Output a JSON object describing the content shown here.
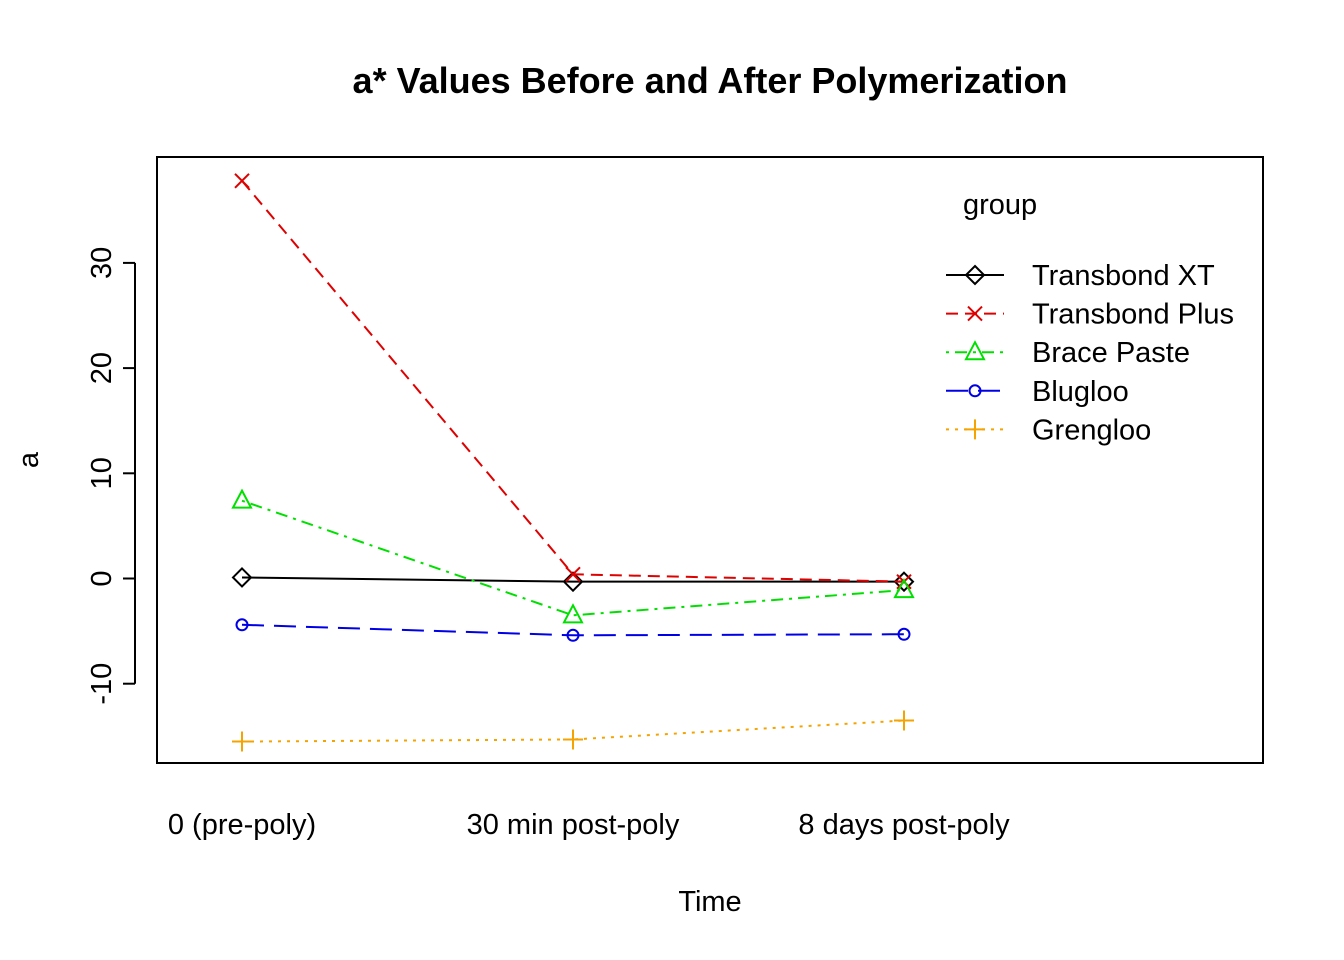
{
  "chart_data": {
    "type": "line",
    "title": "a* Values Before and After Polymerization",
    "xlabel": "Time",
    "ylabel": "a",
    "categories": [
      "0 (pre-poly)",
      "30 min post-poly",
      "8 days post-poly"
    ],
    "ylim": [
      -17.5,
      40
    ],
    "yticks": [
      -10,
      0,
      10,
      20,
      30
    ],
    "legend": {
      "title": "group",
      "position": "top-right"
    },
    "series": [
      {
        "name": "Transbond XT",
        "values": [
          0.1,
          -0.3,
          -0.3
        ],
        "color": "#000000",
        "marker": "diamond",
        "dash": "solid"
      },
      {
        "name": "Transbond Plus",
        "values": [
          37.8,
          0.4,
          -0.3
        ],
        "color": "#DF0000",
        "marker": "x",
        "dash": "dashed"
      },
      {
        "name": "Brace Paste",
        "values": [
          7.4,
          -3.5,
          -1.1
        ],
        "color": "#00E000",
        "marker": "triangle",
        "dash": "dotdash"
      },
      {
        "name": "Blugloo",
        "values": [
          -4.4,
          -5.4,
          -5.3
        ],
        "color": "#0000E6",
        "marker": "circle",
        "dash": "longdash"
      },
      {
        "name": "Grengloo",
        "values": [
          -15.5,
          -15.3,
          -13.5
        ],
        "color": "#F5A300",
        "marker": "plus",
        "dash": "dotted"
      }
    ]
  }
}
